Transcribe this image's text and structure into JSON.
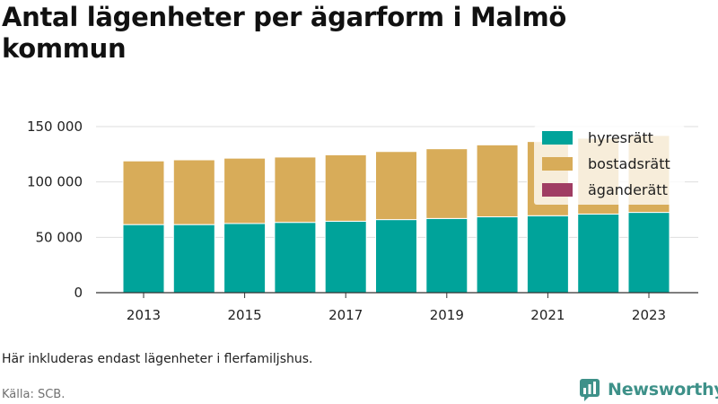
{
  "title": "Antal lägenheter per ägarform i Malmö kommun",
  "footnote": "Här inkluderas endast lägenheter i flerfamiljshus.",
  "source": "Källa: SCB.",
  "brand": {
    "name": "Newsworthy",
    "icon": "newsworthy-logo-icon",
    "color": "#3e9189"
  },
  "chart_data": {
    "type": "bar",
    "stacked": true,
    "x": [
      2013,
      2014,
      2015,
      2016,
      2017,
      2018,
      2019,
      2020,
      2021,
      2022,
      2023
    ],
    "x_ticks": [
      "2013",
      "2015",
      "2017",
      "2019",
      "2021",
      "2023"
    ],
    "y_ticks": [
      {
        "value": 0,
        "label": "0"
      },
      {
        "value": 50000,
        "label": "50 000"
      },
      {
        "value": 100000,
        "label": "100 000"
      },
      {
        "value": 150000,
        "label": "150 000"
      }
    ],
    "ylim": [
      0,
      150000
    ],
    "grid": true,
    "legend_position": "top-right",
    "series": [
      {
        "name": "hyresrätt",
        "color": "#00a39a",
        "values": [
          61500,
          61500,
          62500,
          63500,
          64500,
          66000,
          67000,
          68500,
          69500,
          71000,
          72500
        ]
      },
      {
        "name": "bostadsrätt",
        "color": "#d8ac59",
        "values": [
          57500,
          58500,
          59000,
          59000,
          60000,
          61500,
          63000,
          65000,
          67000,
          68500,
          69500
        ]
      },
      {
        "name": "äganderätt",
        "color": "#a03d63",
        "values": [
          0,
          0,
          0,
          0,
          0,
          0,
          0,
          0,
          0,
          0,
          0
        ]
      }
    ]
  }
}
